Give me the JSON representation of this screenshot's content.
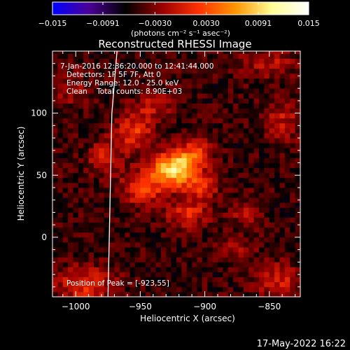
{
  "chart_data": {
    "type": "heatmap",
    "title": "Reconstructed RHESSI Image",
    "xlabel": "Heliocentric X (arcsec)",
    "ylabel": "Heliocentric Y (arcsec)",
    "xlim": [
      -1018,
      -826
    ],
    "ylim": [
      -48,
      150
    ],
    "x_ticks": [
      -1000,
      -950,
      -900,
      -850
    ],
    "y_ticks": [
      0,
      50,
      100
    ],
    "colorbar": {
      "range": [
        -0.015,
        0.015
      ],
      "tick_labels": [
        "−0.015",
        "−0.0091",
        "−0.0030",
        "0.0030",
        "0.0091",
        "0.015"
      ],
      "tick_values": [
        -0.015,
        -0.0091,
        -0.003,
        0.003,
        0.0091,
        0.015
      ],
      "unit_label": "(photons cm⁻² s⁻¹ asec⁻²)",
      "colormap": [
        "#0000ff",
        "#4b0096",
        "#000000",
        "#9b0000",
        "#ff3200",
        "#ff9600",
        "#ffff96",
        "#ffffff"
      ]
    },
    "annotations": [
      "7-Jan-2016 12:36:20.000 to 12:41:44.000",
      "Detectors: 1F 5F 7F, Att 0",
      "Energy Range: 12.0 - 25.0 keV",
      "Clean    Total counts: 8.90E+03",
      "Position of Peak = [-923,55]"
    ],
    "peak": {
      "x": -923,
      "y": 55
    },
    "sources": [
      {
        "x": -923,
        "y": 55,
        "amp": 0.015,
        "sx": 12,
        "sy": 9
      },
      {
        "x": -948,
        "y": 40,
        "amp": 0.007,
        "sx": 12,
        "sy": 10
      },
      {
        "x": -908,
        "y": 68,
        "amp": 0.006,
        "sx": 10,
        "sy": 8
      },
      {
        "x": -903,
        "y": 40,
        "amp": 0.0055,
        "sx": 9,
        "sy": 7
      },
      {
        "x": -955,
        "y": 85,
        "amp": 0.0065,
        "sx": 10,
        "sy": 10
      },
      {
        "x": -978,
        "y": 65,
        "amp": 0.005,
        "sx": 9,
        "sy": 9
      },
      {
        "x": -913,
        "y": 20,
        "amp": 0.0055,
        "sx": 12,
        "sy": 8
      },
      {
        "x": -940,
        "y": 105,
        "amp": 0.004,
        "sx": 10,
        "sy": 8
      },
      {
        "x": -993,
        "y": -38,
        "amp": 0.006,
        "sx": 16,
        "sy": 10
      },
      {
        "x": -843,
        "y": -35,
        "amp": 0.005,
        "sx": 12,
        "sy": 10
      },
      {
        "x": -840,
        "y": 95,
        "amp": 0.004,
        "sx": 10,
        "sy": 12
      },
      {
        "x": -870,
        "y": 20,
        "amp": 0.0035,
        "sx": 8,
        "sy": 8
      },
      {
        "x": -850,
        "y": 140,
        "amp": 0.004,
        "sx": 15,
        "sy": 8
      },
      {
        "x": -1005,
        "y": 120,
        "amp": 0.003,
        "sx": 10,
        "sy": 10
      },
      {
        "x": -875,
        "y": -10,
        "amp": 0.004,
        "sx": 8,
        "sy": 6
      }
    ],
    "background_level": -0.005,
    "limb_curve": [
      [
        -968,
        150
      ],
      [
        -972,
        100
      ],
      [
        -973,
        50
      ],
      [
        -974,
        0
      ],
      [
        -975,
        -48
      ]
    ]
  },
  "footer": {
    "timestamp": "17-May-2022 16:22"
  }
}
